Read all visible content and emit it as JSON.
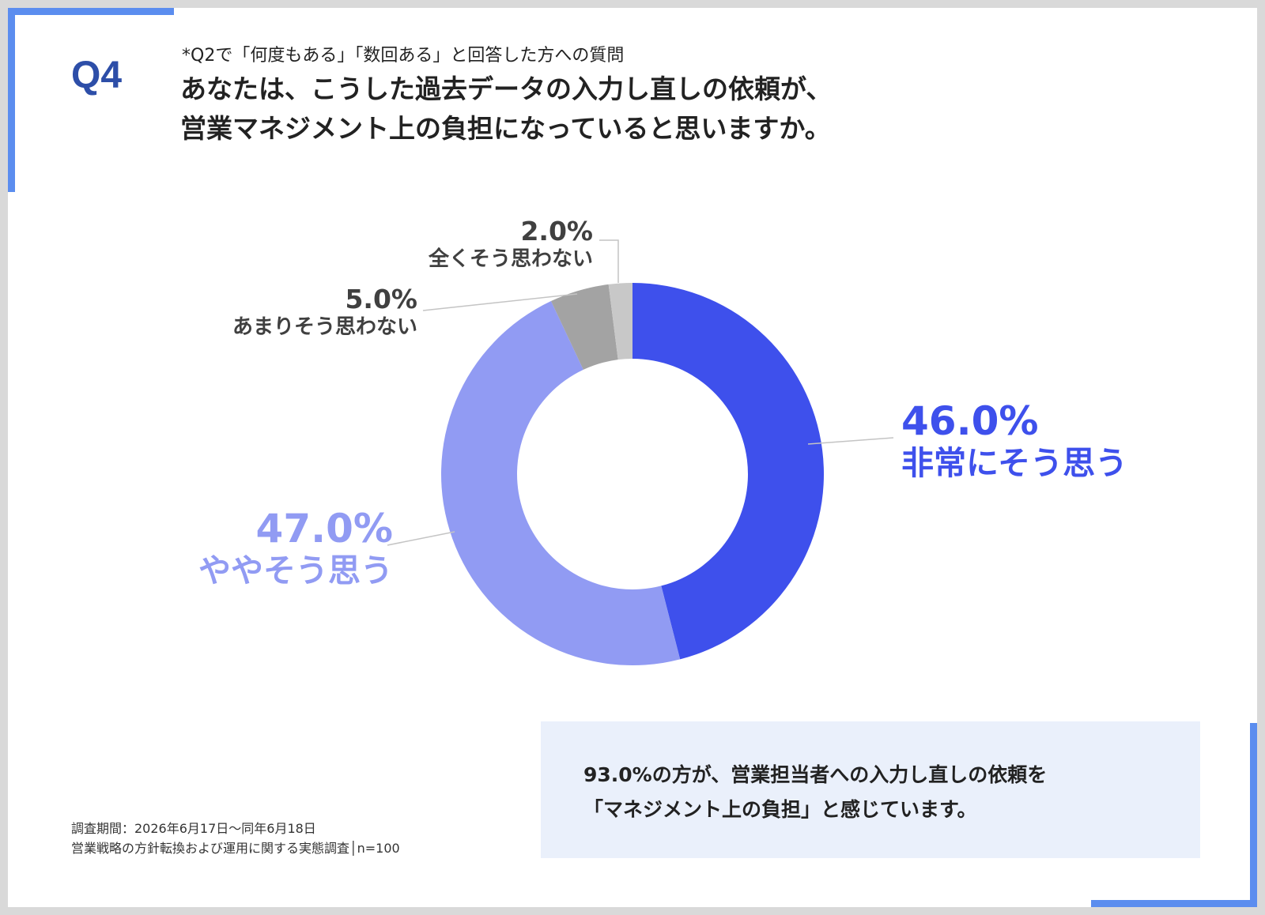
{
  "header": {
    "badge": "Q4",
    "note": "*Q2で「何度もある」「数回ある」と回答した方への質問",
    "question_line1": "あなたは、こうした過去データの入力し直しの依頼が、",
    "question_line2": "営業マネジメント上の負担になっていると思いますか。"
  },
  "chart_data": {
    "type": "pie",
    "donut": true,
    "categories": [
      "非常にそう思う",
      "ややそう思う",
      "あまりそう思わない",
      "全くそう思わない"
    ],
    "values": [
      46.0,
      47.0,
      5.0,
      2.0
    ],
    "value_labels": [
      "46.0%",
      "47.0%",
      "5.0%",
      "2.0%"
    ],
    "colors": [
      "#3e50ec",
      "#919bf3",
      "#a3a3a3",
      "#c8c8c8"
    ],
    "label_colors": [
      "#3e50ec",
      "#919bf3",
      "#404040",
      "#404040"
    ]
  },
  "summary": {
    "line1": "93.0%の方が、営業担当者への入力し直しの依頼を",
    "line2": "「マネジメント上の負担」と感じています。"
  },
  "footer": {
    "period": "調査期間：2026年6月17日～同年6月18日",
    "survey": "営業戦略の方針転換および運用に関する実態調査│n=100"
  },
  "theme": {
    "accent": "#5b8def",
    "badge_color": "#2d4ea8"
  }
}
